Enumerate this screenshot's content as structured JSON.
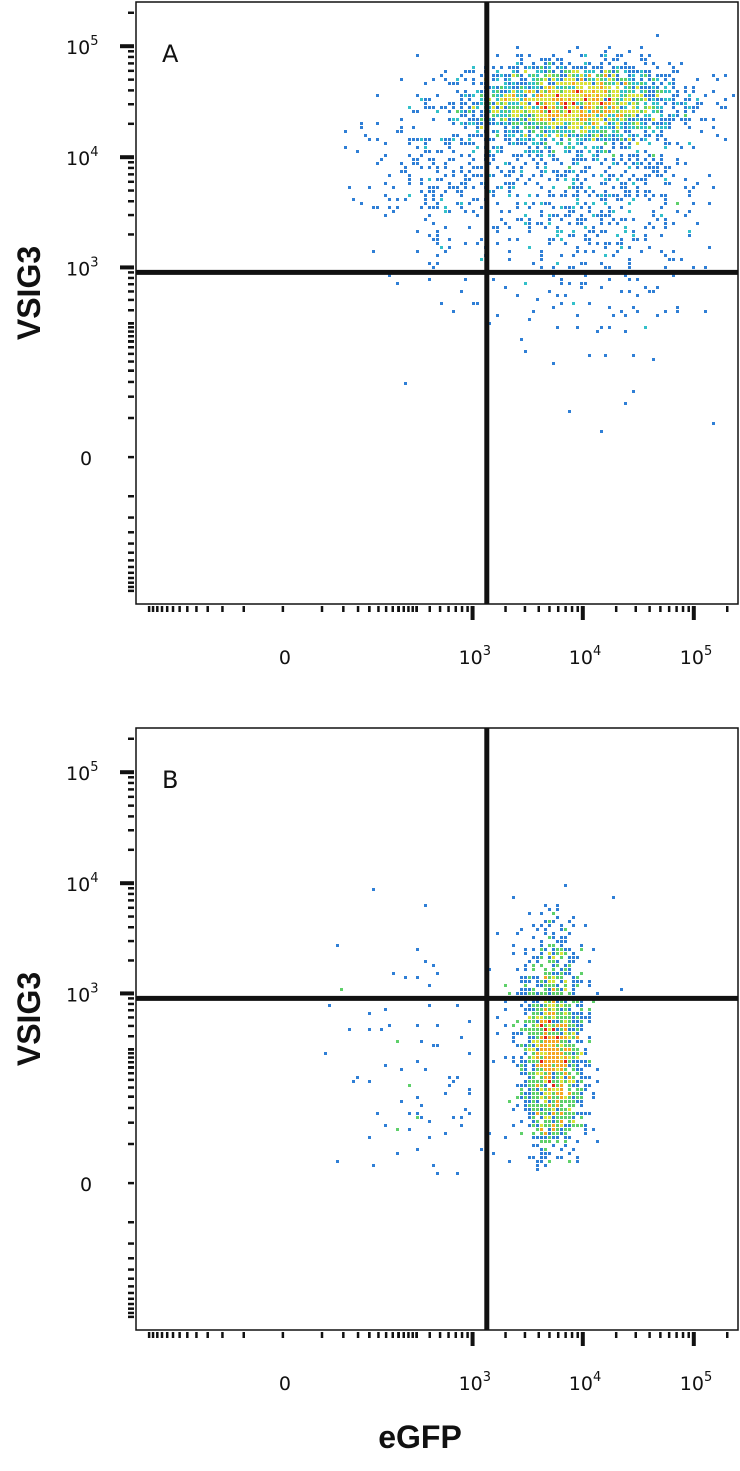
{
  "chart_data": [
    {
      "type": "scatter",
      "panel_label": "A",
      "xlabel": "eGFP",
      "ylabel": "VSIG3",
      "x_scale": "biexponential",
      "y_scale": "biexponential",
      "xlim": [
        -400,
        250000
      ],
      "ylim": [
        -400,
        250000
      ],
      "x_ticks": [
        {
          "value": 0,
          "base": "0",
          "exp": ""
        },
        {
          "value": 1000,
          "base": "10",
          "exp": "3"
        },
        {
          "value": 10000,
          "base": "10",
          "exp": "4"
        },
        {
          "value": 100000,
          "base": "10",
          "exp": "5"
        }
      ],
      "y_ticks": [
        {
          "value": 0,
          "base": "0",
          "exp": ""
        },
        {
          "value": 1000,
          "base": "10",
          "exp": "3"
        },
        {
          "value": 10000,
          "base": "10",
          "exp": "4"
        },
        {
          "value": 100000,
          "base": "10",
          "exp": "5"
        }
      ],
      "quadrant_gates": {
        "x": 1350,
        "y": 900
      },
      "populations": [
        {
          "name": "",
          "center": [
            8500,
            30000
          ],
          "spread_decades": [
            0.45,
            0.18
          ],
          "n_events": 2600,
          "kind": "main"
        },
        {
          "name": "",
          "center": [
            12000,
            5000
          ],
          "spread_decades": [
            0.55,
            0.45
          ],
          "n_events": 700,
          "kind": "diffuse"
        },
        {
          "name": "",
          "center": [
            600,
            8000
          ],
          "spread_decades": [
            0.4,
            0.35
          ],
          "n_events": 260,
          "kind": "diffuse"
        }
      ],
      "colormap": [
        "#2a3fa8",
        "#2f7fd6",
        "#33c0c9",
        "#5ed06a",
        "#d9e23a",
        "#f5a623",
        "#e2231a"
      ]
    },
    {
      "type": "scatter",
      "panel_label": "B",
      "xlabel": "eGFP",
      "ylabel": "VSIG3",
      "x_scale": "biexponential",
      "y_scale": "biexponential",
      "xlim": [
        -400,
        250000
      ],
      "ylim": [
        -400,
        250000
      ],
      "x_ticks": [
        {
          "value": 0,
          "base": "0",
          "exp": ""
        },
        {
          "value": 1000,
          "base": "10",
          "exp": "3"
        },
        {
          "value": 10000,
          "base": "10",
          "exp": "4"
        },
        {
          "value": 100000,
          "base": "10",
          "exp": "5"
        }
      ],
      "y_ticks": [
        {
          "value": 0,
          "base": "0",
          "exp": ""
        },
        {
          "value": 1000,
          "base": "10",
          "exp": "3"
        },
        {
          "value": 10000,
          "base": "10",
          "exp": "4"
        },
        {
          "value": 100000,
          "base": "10",
          "exp": "5"
        }
      ],
      "quadrant_gates": {
        "x": 1350,
        "y": 900
      },
      "populations": [
        {
          "name": "",
          "center": [
            5500,
            250
          ],
          "spread_decades": [
            0.14,
            0.5
          ],
          "n_events": 1700,
          "kind": "main"
        },
        {
          "name": "",
          "center": [
            5500,
            1500
          ],
          "spread_decades": [
            0.2,
            0.3
          ],
          "n_events": 90,
          "kind": "diffuse"
        },
        {
          "name": "",
          "center": [
            400,
            200
          ],
          "spread_decades": [
            0.5,
            0.6
          ],
          "n_events": 90,
          "kind": "diffuse"
        }
      ],
      "colormap": [
        "#2a3fa8",
        "#2f7fd6",
        "#33c0c9",
        "#5ed06a",
        "#d9e23a",
        "#f5a623",
        "#e2231a"
      ]
    }
  ]
}
